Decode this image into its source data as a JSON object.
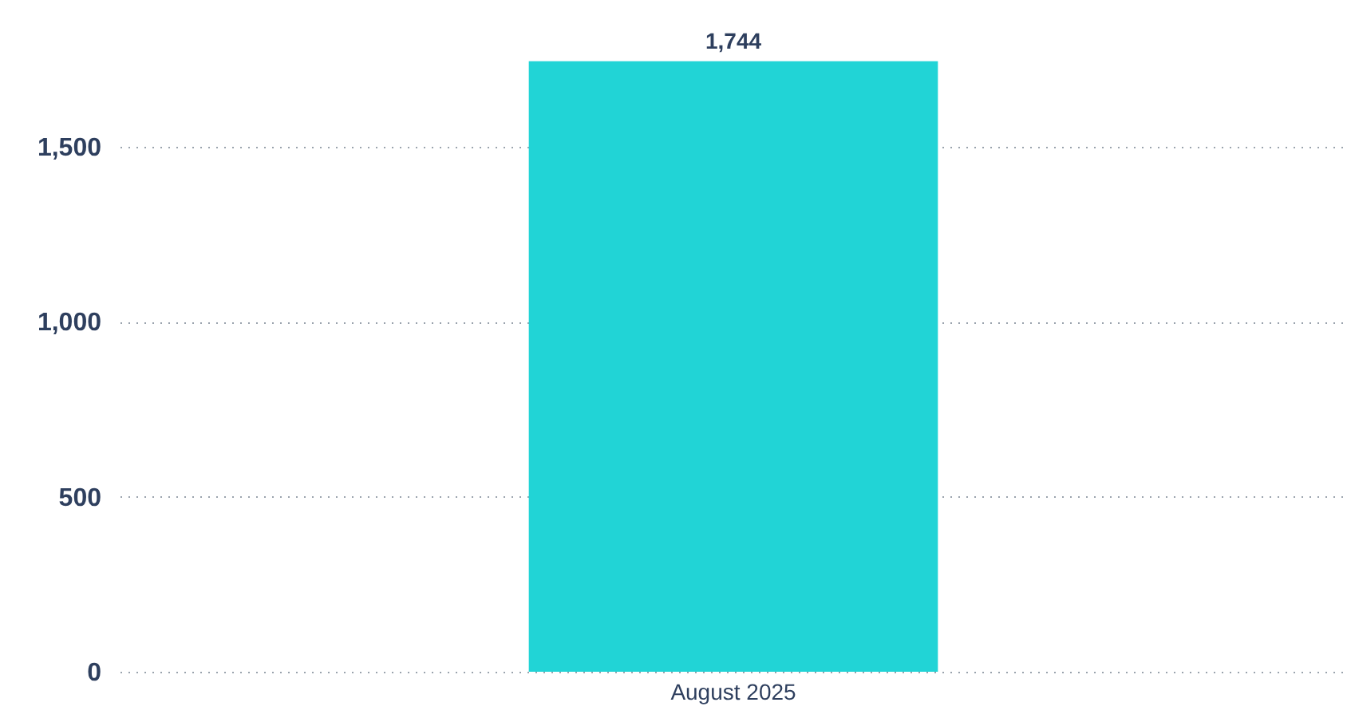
{
  "chart_data": {
    "type": "bar",
    "categories": [
      "August 2025"
    ],
    "values": [
      1744
    ],
    "value_labels": [
      "1,744"
    ],
    "color": "#21d4d6",
    "ylim": [
      0,
      1750
    ],
    "yticks": [
      {
        "value": 0,
        "label": "0"
      },
      {
        "value": 500,
        "label": "500"
      },
      {
        "value": 1000,
        "label": "1,000"
      },
      {
        "value": 1500,
        "label": "1,500"
      }
    ],
    "grid": "y"
  }
}
